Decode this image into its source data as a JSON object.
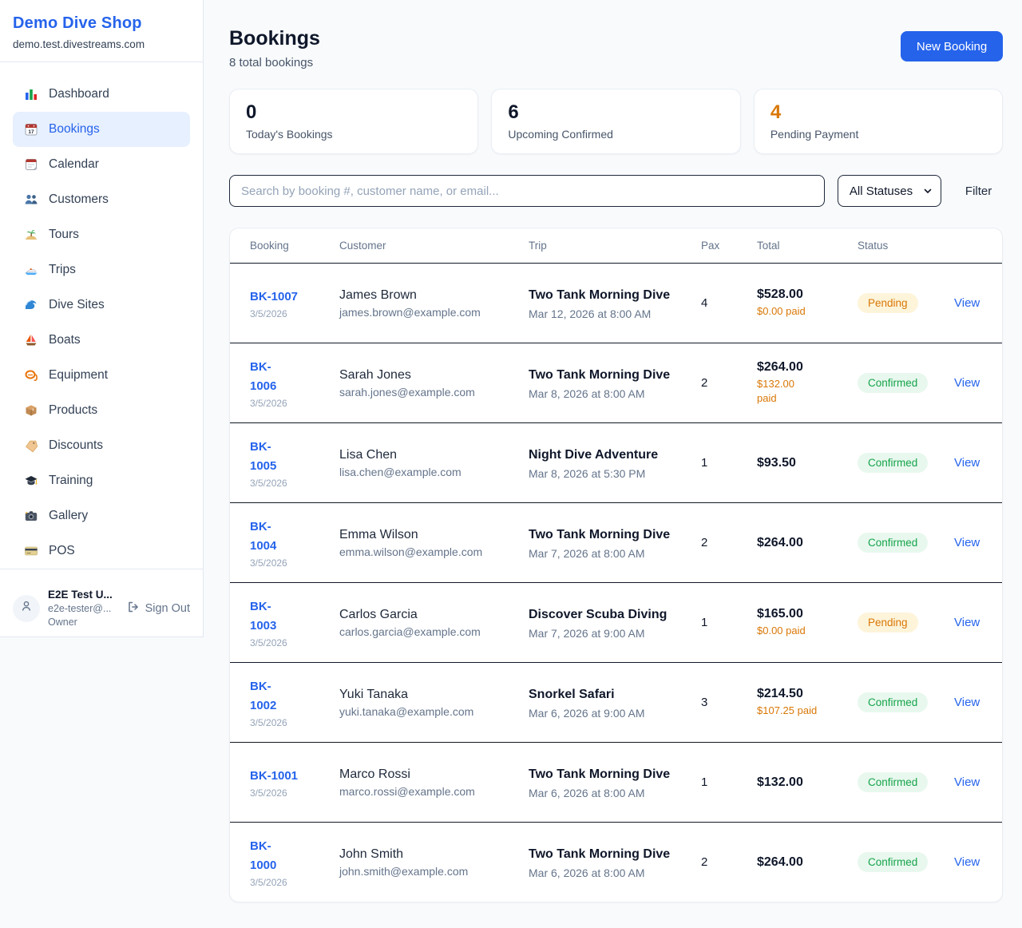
{
  "colors": {
    "accent_blue": "#2563eb",
    "orange": "#d97706",
    "green": "#16a34a",
    "pending_badge_bg": "#fdf4da",
    "confirmed_badge_bg": "#e8f8ee",
    "page_bg": "#f8fafc"
  },
  "sidebar": {
    "brand": "Demo Dive Shop",
    "domain": "demo.test.divestreams.com",
    "items": [
      {
        "label": "Dashboard",
        "icon": "bar-chart-icon",
        "active": false
      },
      {
        "label": "Bookings",
        "icon": "calendar-17-icon",
        "active": true
      },
      {
        "label": "Calendar",
        "icon": "calendar-icon",
        "active": false
      },
      {
        "label": "Customers",
        "icon": "users-icon",
        "active": false
      },
      {
        "label": "Tours",
        "icon": "island-icon",
        "active": false
      },
      {
        "label": "Trips",
        "icon": "speedboat-icon",
        "active": false
      },
      {
        "label": "Dive Sites",
        "icon": "wave-icon",
        "active": false
      },
      {
        "label": "Boats",
        "icon": "sailboat-icon",
        "active": false
      },
      {
        "label": "Equipment",
        "icon": "diving-mask-icon",
        "active": false
      },
      {
        "label": "Products",
        "icon": "box-icon",
        "active": false
      },
      {
        "label": "Discounts",
        "icon": "tag-icon",
        "active": false
      },
      {
        "label": "Training",
        "icon": "grad-cap-icon",
        "active": false
      },
      {
        "label": "Gallery",
        "icon": "camera-icon",
        "active": false
      },
      {
        "label": "POS",
        "icon": "credit-card-icon",
        "active": false
      }
    ],
    "user": {
      "name": "E2E Test U...",
      "email": "e2e-tester@...",
      "role": "Owner",
      "signout_label": "Sign Out"
    }
  },
  "header": {
    "title": "Bookings",
    "subtitle": "8 total bookings",
    "new_booking_label": "New Booking"
  },
  "stats": [
    {
      "value": "0",
      "label": "Today's Bookings",
      "highlight": false
    },
    {
      "value": "6",
      "label": "Upcoming Confirmed",
      "highlight": false
    },
    {
      "value": "4",
      "label": "Pending Payment",
      "highlight": true
    }
  ],
  "filters": {
    "search_placeholder": "Search by booking #, customer name, or email...",
    "status_value": "All Statuses",
    "filter_label": "Filter"
  },
  "table": {
    "columns": [
      "Booking",
      "Customer",
      "Trip",
      "Pax",
      "Total",
      "Status",
      ""
    ],
    "view_label": "View",
    "rows": [
      {
        "id": "BK-1007",
        "date": "3/5/2026",
        "customer": "James Brown",
        "email": "james.brown@example.com",
        "trip": "Two Tank Morning Dive",
        "when": "Mar 12, 2026 at 8:00 AM",
        "pax": "4",
        "total": "$528.00",
        "paid": "$0.00 paid",
        "status": "Pending",
        "status_type": "pending"
      },
      {
        "id": "BK-\n1006",
        "date": "3/5/2026",
        "customer": "Sarah Jones",
        "email": "sarah.jones@example.com",
        "trip": "Two Tank Morning Dive",
        "when": "Mar 8, 2026 at 8:00 AM",
        "pax": "2",
        "total": "$264.00",
        "paid": "$132.00\npaid",
        "status": "Confirmed",
        "status_type": "confirmed"
      },
      {
        "id": "BK-\n1005",
        "date": "3/5/2026",
        "customer": "Lisa Chen",
        "email": "lisa.chen@example.com",
        "trip": "Night Dive Adventure",
        "when": "Mar 8, 2026 at 5:30 PM",
        "pax": "1",
        "total": "$93.50",
        "paid": "",
        "status": "Confirmed",
        "status_type": "confirmed"
      },
      {
        "id": "BK-\n1004",
        "date": "3/5/2026",
        "customer": "Emma Wilson",
        "email": "emma.wilson@example.com",
        "trip": "Two Tank Morning Dive",
        "when": "Mar 7, 2026 at 8:00 AM",
        "pax": "2",
        "total": "$264.00",
        "paid": "",
        "status": "Confirmed",
        "status_type": "confirmed"
      },
      {
        "id": "BK-\n1003",
        "date": "3/5/2026",
        "customer": "Carlos Garcia",
        "email": "carlos.garcia@example.com",
        "trip": "Discover Scuba Diving",
        "when": "Mar 7, 2026 at 9:00 AM",
        "pax": "1",
        "total": "$165.00",
        "paid": "$0.00 paid",
        "status": "Pending",
        "status_type": "pending"
      },
      {
        "id": "BK-\n1002",
        "date": "3/5/2026",
        "customer": "Yuki Tanaka",
        "email": "yuki.tanaka@example.com",
        "trip": "Snorkel Safari",
        "when": "Mar 6, 2026 at 9:00 AM",
        "pax": "3",
        "total": "$214.50",
        "paid": "$107.25 paid",
        "status": "Confirmed",
        "status_type": "confirmed"
      },
      {
        "id": "BK-1001",
        "date": "3/5/2026",
        "customer": "Marco Rossi",
        "email": "marco.rossi@example.com",
        "trip": "Two Tank Morning Dive",
        "when": "Mar 6, 2026 at 8:00 AM",
        "pax": "1",
        "total": "$132.00",
        "paid": "",
        "status": "Confirmed",
        "status_type": "confirmed"
      },
      {
        "id": "BK-\n1000",
        "date": "3/5/2026",
        "customer": "John Smith",
        "email": "john.smith@example.com",
        "trip": "Two Tank Morning Dive",
        "when": "Mar 6, 2026 at 8:00 AM",
        "pax": "2",
        "total": "$264.00",
        "paid": "",
        "status": "Confirmed",
        "status_type": "confirmed"
      }
    ]
  }
}
